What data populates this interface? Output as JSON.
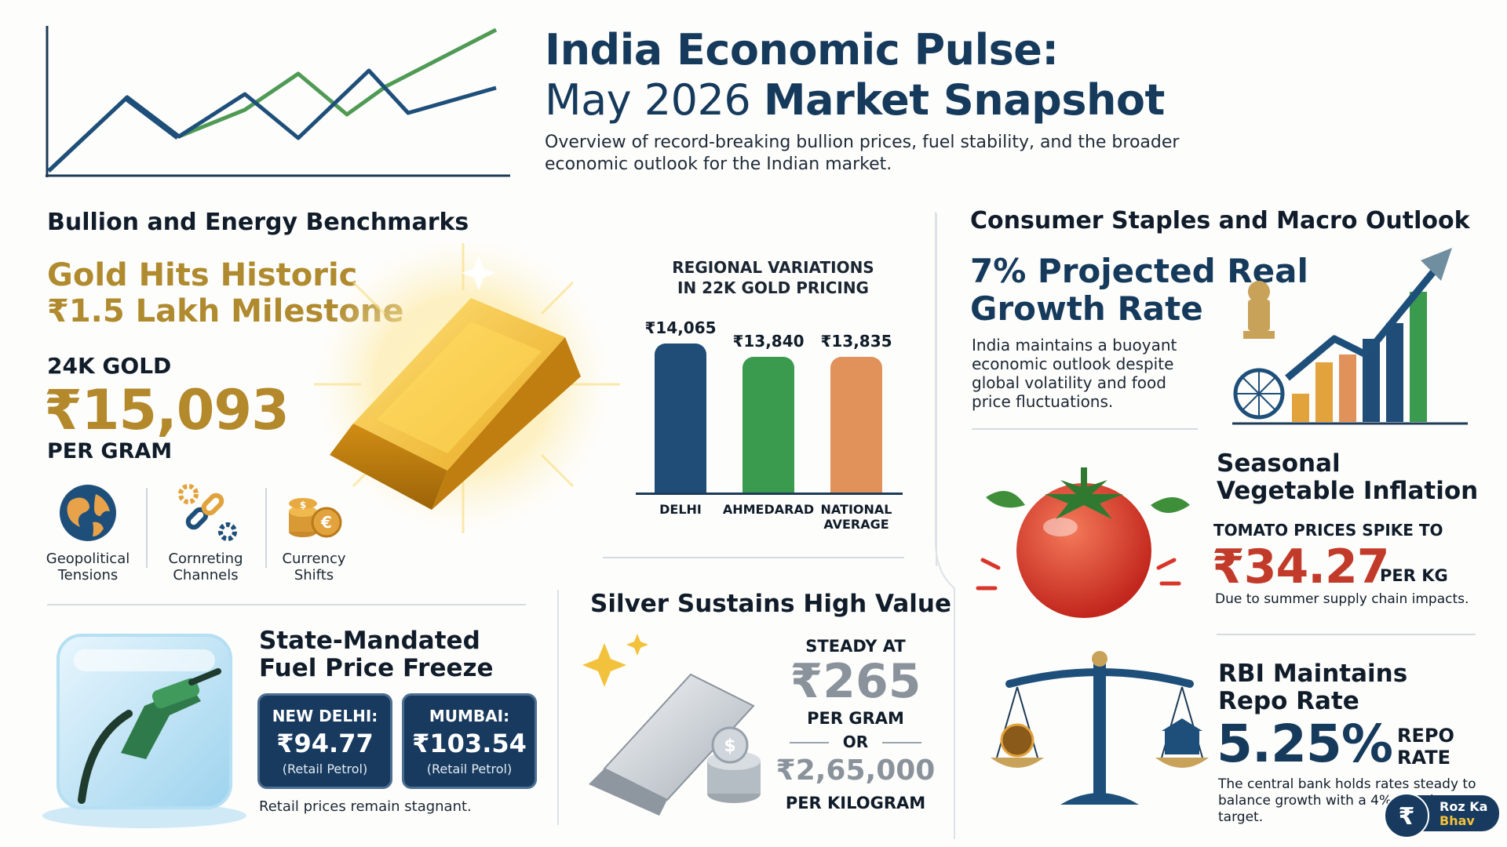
{
  "header": {
    "title_line1": "India Economic Pulse:",
    "title_line2_regular": "May 2026",
    "title_line2_bold": "Market Snapshot",
    "subtitle": "Overview of record-breaking bullion prices, fuel stability, and the broader economic outlook for the Indian market."
  },
  "bullion": {
    "section_title": "Bullion and Energy Benchmarks",
    "gold_headline_1": "Gold Hits Historic",
    "gold_headline_2": "₹1.5 Lakh Milestone",
    "gold_label": "24K GOLD",
    "gold_price": "₹15,093",
    "gold_unit": "PER GRAM",
    "factors": [
      {
        "line1": "Geopolitical",
        "line2": "Tensions",
        "icon": "globe-icon"
      },
      {
        "line1": "Cornreting",
        "line2": "Channels",
        "icon": "chain-gear-icon"
      },
      {
        "line1": "Currency",
        "line2": "Shifts",
        "icon": "coins-icon"
      }
    ],
    "colors": {
      "gold": "#b3892b",
      "navy": "#163a5c"
    }
  },
  "chart_data": {
    "type": "bar",
    "title": "REGIONAL VARIATIONS IN 22K GOLD PRICING",
    "title_line1": "REGIONAL VARIATIONS",
    "title_line2": "IN 22K GOLD PRICING",
    "categories": [
      "DELHI",
      "AHMEDARAD",
      "NATIONAL AVERAGE"
    ],
    "category_lines": [
      [
        "DELHI"
      ],
      [
        "AHMEDARAD"
      ],
      [
        "NATIONAL",
        "AVERAGE"
      ]
    ],
    "values": [
      14065,
      13840,
      13835
    ],
    "value_labels": [
      "₹14,065",
      "₹13,840",
      "₹13,835"
    ],
    "colors": [
      "#1f4d78",
      "#3a9a4e",
      "#e0925a"
    ],
    "ylim": [
      11500,
      14200
    ]
  },
  "fuel": {
    "title_line1": "State-Mandated",
    "title_line2": "Fuel Price Freeze",
    "cards": [
      {
        "city": "NEW DELHI:",
        "price": "₹94.77",
        "note": "(Retail Petrol)"
      },
      {
        "city": "MUMBAI:",
        "price": "₹103.54",
        "note": "(Retail Petrol)"
      }
    ],
    "footnote": "Retail prices remain stagnant."
  },
  "silver": {
    "title": "Silver Sustains High Value",
    "steady": "STEADY AT",
    "price_gram": "₹265",
    "unit_gram": "PER GRAM",
    "or": "OR",
    "price_kg": "₹2,65,000",
    "unit_kg": "PER KILOGRAM"
  },
  "consumer": {
    "section_title": "Consumer Staples and Macro Outlook",
    "growth_line1": "7% Projected Real",
    "growth_line2": "Growth Rate",
    "growth_text": "India maintains a buoyant economic outlook despite global volatility and food price fluctuations.",
    "veg_line1": "Seasonal",
    "veg_line2": "Vegetable Inflation",
    "tomato_label": "TOMATO PRICES SPIKE TO",
    "tomato_price": "₹34.27",
    "tomato_unit": "PER KG",
    "tomato_note": "Due to summer supply chain impacts.",
    "rbi_line1": "RBI Maintains",
    "rbi_line2": "Repo Rate",
    "rbi_rate": "5.25%",
    "rbi_label_1": "REPO",
    "rbi_label_2": "RATE",
    "rbi_note": "The central bank holds rates steady to balance growth with a 4% inflation target."
  },
  "logo": {
    "line1": "Roz Ka",
    "line2": "Bhav"
  }
}
